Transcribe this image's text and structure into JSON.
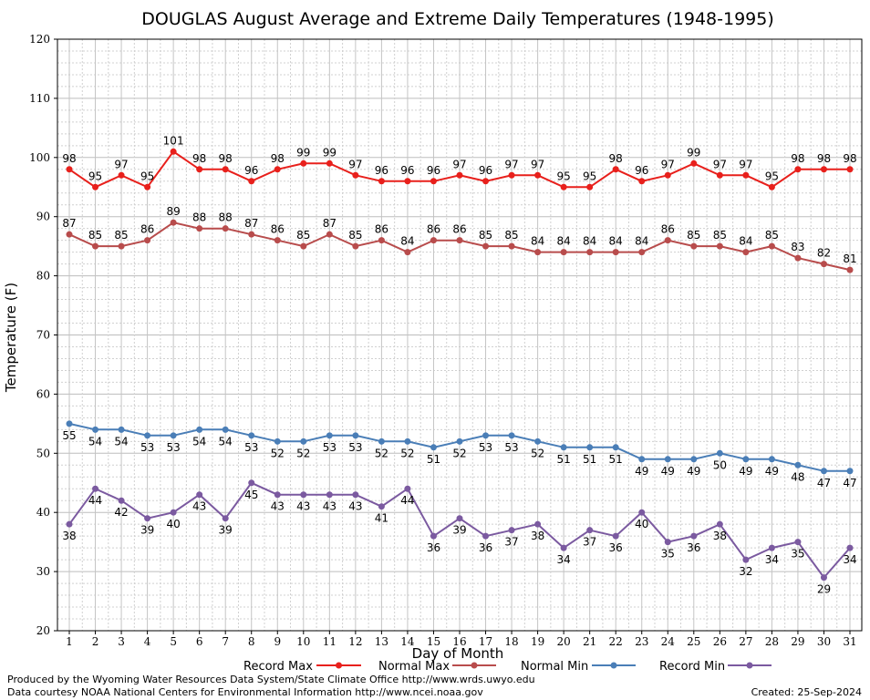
{
  "chart_data": {
    "type": "line",
    "title": "DOUGLAS August Average and Extreme Daily Temperatures (1948-1995)",
    "xlabel": "Day of Month",
    "ylabel": "Temperature (F)",
    "ylim": [
      20,
      120
    ],
    "xlim": [
      1,
      31
    ],
    "yticks": [
      20,
      30,
      40,
      50,
      60,
      70,
      80,
      90,
      100,
      110,
      120
    ],
    "x": [
      1,
      2,
      3,
      4,
      5,
      6,
      7,
      8,
      9,
      10,
      11,
      12,
      13,
      14,
      15,
      16,
      17,
      18,
      19,
      20,
      21,
      22,
      23,
      24,
      25,
      26,
      27,
      28,
      29,
      30,
      31
    ],
    "grid": true,
    "legend_position": "bottom",
    "series": [
      {
        "name": "Record Max",
        "color": "#e8201c",
        "label_position": "above",
        "values": [
          98,
          95,
          97,
          95,
          101,
          98,
          98,
          96,
          98,
          99,
          99,
          97,
          96,
          96,
          96,
          97,
          96,
          97,
          97,
          95,
          95,
          98,
          96,
          97,
          99,
          97,
          97,
          95,
          98,
          98,
          98
        ]
      },
      {
        "name": "Normal Max",
        "color": "#b84c4c",
        "label_position": "above",
        "values": [
          87,
          85,
          85,
          86,
          89,
          88,
          88,
          87,
          86,
          85,
          87,
          85,
          86,
          84,
          86,
          86,
          85,
          85,
          84,
          84,
          84,
          84,
          84,
          86,
          85,
          85,
          84,
          85,
          83,
          82,
          81
        ]
      },
      {
        "name": "Normal Min",
        "color": "#4a7eb7",
        "label_position": "below",
        "values": [
          55,
          54,
          54,
          53,
          53,
          54,
          54,
          53,
          52,
          52,
          53,
          53,
          52,
          52,
          51,
          52,
          53,
          53,
          52,
          51,
          51,
          51,
          49,
          49,
          49,
          50,
          49,
          49,
          48,
          47,
          47
        ]
      },
      {
        "name": "Record Min",
        "color": "#7b5aa0",
        "label_position": "below",
        "values": [
          38,
          44,
          42,
          39,
          40,
          43,
          39,
          45,
          43,
          43,
          43,
          43,
          41,
          44,
          36,
          39,
          36,
          37,
          38,
          34,
          37,
          36,
          40,
          35,
          36,
          38,
          32,
          34,
          35,
          29,
          34
        ]
      }
    ]
  },
  "footer": {
    "credit_line_1": "Produced by the Wyoming Water Resources Data System/State Climate Office http://www.wrds.uwyo.edu",
    "credit_line_2": "Data courtesy NOAA National Centers for Environmental Information http://www.ncei.noaa.gov",
    "created": "Created:  25-Sep-2024"
  }
}
